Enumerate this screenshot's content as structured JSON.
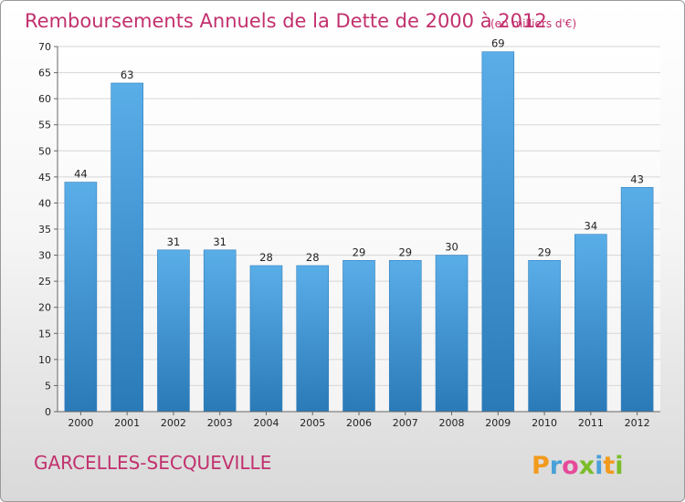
{
  "chart_data": {
    "type": "bar",
    "title": "Remboursements Annuels de la Dette de 2000 à 2012",
    "subtitle": "(en milliers d'€)",
    "categories": [
      "2000",
      "2001",
      "2002",
      "2003",
      "2004",
      "2005",
      "2006",
      "2007",
      "2008",
      "2009",
      "2010",
      "2011",
      "2012"
    ],
    "values": [
      44,
      63,
      31,
      31,
      28,
      28,
      29,
      29,
      30,
      69,
      29,
      34,
      43
    ],
    "ylim": [
      0,
      70
    ],
    "yticks": [
      0,
      5,
      10,
      15,
      20,
      25,
      30,
      35,
      40,
      45,
      50,
      55,
      60,
      65,
      70
    ],
    "grid": true,
    "bar_color_top": "#5aaee8",
    "bar_color_bottom": "#2a7ab8"
  },
  "footer": {
    "place": "GARCELLES-SECQUEVILLE",
    "logo": [
      "P",
      "r",
      "o",
      "x",
      "i",
      "t",
      "i"
    ],
    "logo_colors": [
      "#f29a1c",
      "#4aa0d8",
      "#e64b9a",
      "#7cbd2a",
      "#4aa0d8",
      "#f29a1c",
      "#7cbd2a"
    ]
  },
  "colors": {
    "title": "#c2306d",
    "grid": "#d6d6d6"
  }
}
